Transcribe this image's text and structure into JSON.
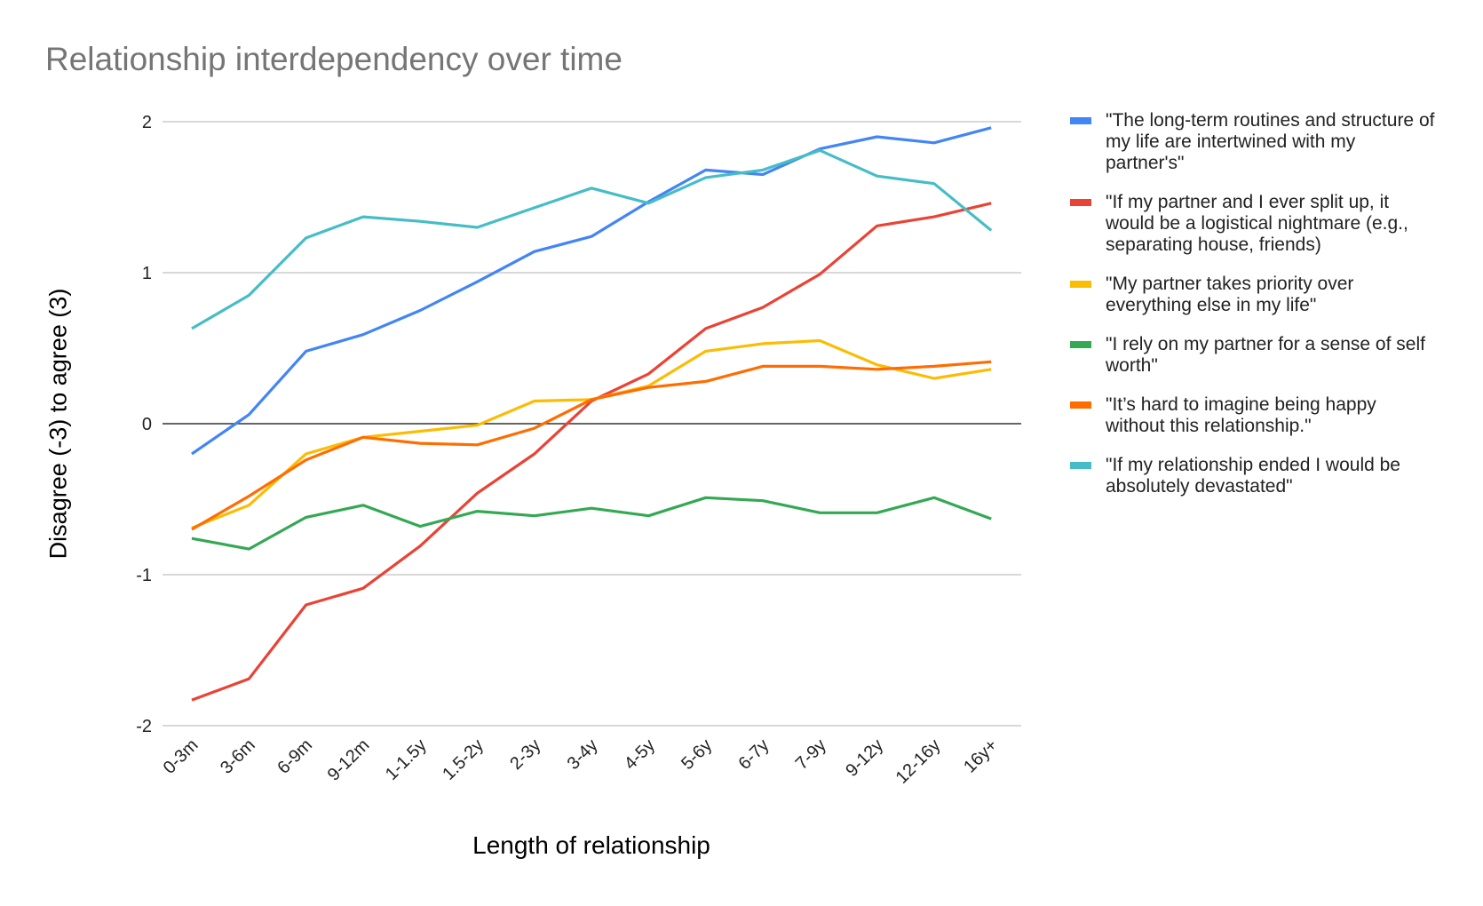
{
  "chart_data": {
    "type": "line",
    "title": "Relationship interdependency over time",
    "xlabel": "Length of relationship",
    "ylabel": "Disagree (-3) to agree (3)",
    "ylim": [
      -2,
      2
    ],
    "yticks": [
      "2",
      "1",
      "0",
      "-1",
      "-2"
    ],
    "grid": true,
    "legend_position": "right",
    "categories": [
      "0-3m",
      "3-6m",
      "6-9m",
      "9-12m",
      "1-1.5y",
      "1.5-2y",
      "2-3y",
      "3-4y",
      "4-5y",
      "5-6y",
      "6-7y",
      "7-9y",
      "9-12y",
      "12-16y",
      "16y+"
    ],
    "series": [
      {
        "name": "\"The long-term routines and structure of my life are intertwined with my partner's\"",
        "color": "#4285F4",
        "values": [
          -0.2,
          0.06,
          0.48,
          0.59,
          0.75,
          0.94,
          1.14,
          1.24,
          1.47,
          1.68,
          1.65,
          1.82,
          1.9,
          1.86,
          1.96
        ]
      },
      {
        "name": "\"If my partner and I ever split up, it would be a logistical nightmare (e.g., separating house, friends)",
        "color": "#EA4335",
        "values": [
          -1.83,
          -1.69,
          -1.2,
          -1.09,
          -0.81,
          -0.46,
          -0.2,
          0.15,
          0.33,
          0.63,
          0.77,
          0.99,
          1.31,
          1.37,
          1.46
        ]
      },
      {
        "name": "\"My partner takes priority over everything else in my life\"",
        "color": "#FBBC04",
        "values": [
          -0.69,
          -0.54,
          -0.2,
          -0.09,
          -0.05,
          -0.01,
          0.15,
          0.16,
          0.25,
          0.48,
          0.53,
          0.55,
          0.39,
          0.3,
          0.36
        ]
      },
      {
        "name": "\"I rely on my partner for a sense of self worth\"",
        "color": "#34A853",
        "values": [
          -0.76,
          -0.83,
          -0.62,
          -0.54,
          -0.68,
          -0.58,
          -0.61,
          -0.56,
          -0.61,
          -0.49,
          -0.51,
          -0.59,
          -0.59,
          -0.49,
          -0.63
        ]
      },
      {
        "name": "\"It’s hard to imagine being happy without this relationship.\"",
        "color": "#FF6D01",
        "values": [
          -0.7,
          -0.48,
          -0.24,
          -0.09,
          -0.13,
          -0.14,
          -0.03,
          0.16,
          0.24,
          0.28,
          0.38,
          0.38,
          0.36,
          0.38,
          0.41
        ]
      },
      {
        "name": "\"If my relationship ended I would be absolutely devastated\"",
        "color": "#46BDC6",
        "values": [
          0.63,
          0.85,
          1.23,
          1.37,
          1.34,
          1.3,
          1.43,
          1.56,
          1.46,
          1.63,
          1.68,
          1.81,
          1.64,
          1.59,
          1.28
        ]
      }
    ]
  }
}
